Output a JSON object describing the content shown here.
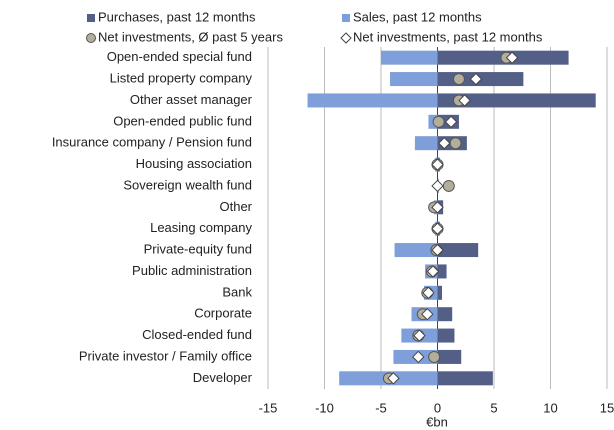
{
  "chart_data": {
    "type": "bar",
    "categories": [
      "Open-ended special fund",
      "Listed property company",
      "Other asset manager",
      "Open-ended public fund",
      "Insurance company / Pension fund",
      "Housing association",
      "Sovereign wealth fund",
      "Other",
      "Leasing company",
      "Private-equity fund",
      "Public administration",
      "Bank",
      "Corporate",
      "Closed-ended fund",
      "Private investor / Family office",
      "Developer"
    ],
    "series": [
      {
        "name": "Purchases, past 12 months",
        "color": "#545f88",
        "values": [
          11.6,
          7.6,
          14.0,
          1.9,
          2.6,
          0.2,
          0.1,
          0.5,
          0.2,
          3.6,
          0.8,
          0.4,
          1.3,
          1.5,
          2.1,
          4.9
        ]
      },
      {
        "name": "Sales, past 12 months",
        "color": "#7e9fd9",
        "values": [
          -5.0,
          -4.2,
          -11.5,
          -0.8,
          -2.0,
          -0.2,
          0,
          -0.3,
          -0.2,
          -3.8,
          -1.1,
          -1.2,
          -2.3,
          -3.2,
          -3.9,
          -8.7
        ]
      },
      {
        "name": "Net investments, Ø past 5 years",
        "color": "#b3ad9c",
        "marker": "circle",
        "values": [
          6.1,
          1.9,
          1.9,
          0.1,
          1.6,
          0,
          1.0,
          -0.3,
          0,
          -0.1,
          -0.5,
          -0.9,
          -1.3,
          -1.7,
          -0.3,
          -4.3
        ]
      },
      {
        "name": "Net investments, past 12 months",
        "color": "#ffffff",
        "marker": "diamond",
        "values": [
          6.6,
          3.4,
          2.4,
          1.2,
          0.6,
          0,
          0,
          0,
          0,
          0,
          -0.4,
          -0.8,
          -0.9,
          -1.6,
          -1.7,
          -3.9
        ]
      }
    ],
    "xlabel": "€bn",
    "xlim": [
      -15,
      15
    ],
    "xticks": [
      -15,
      -10,
      -5,
      0,
      5,
      10,
      15
    ],
    "grid": true
  }
}
